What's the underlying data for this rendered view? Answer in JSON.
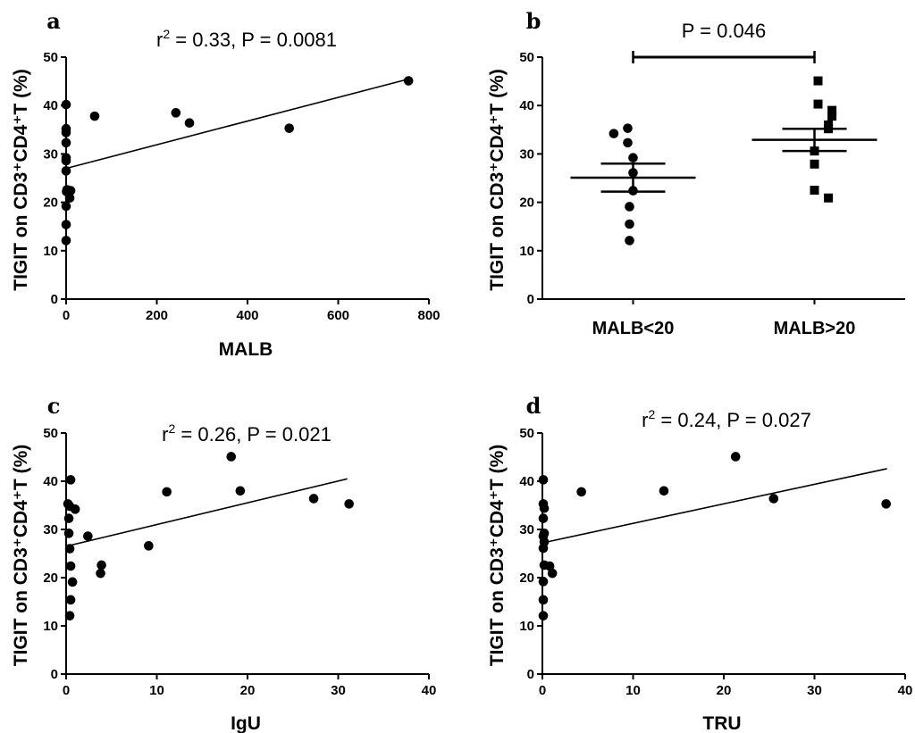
{
  "chart_data": [
    {
      "panel": "a",
      "type": "scatter",
      "stat_prefix": "r",
      "stat_sup": "2",
      "stat_suffix": " = 0.33, P = 0.0081",
      "xlabel": "MALB",
      "ylabel": "TIGIT on CD3⁺CD4⁺T  (%)",
      "xlim": [
        0,
        800
      ],
      "ylim": [
        0,
        50
      ],
      "xticks": [
        0,
        200,
        400,
        600,
        800
      ],
      "yticks": [
        0,
        10,
        20,
        30,
        40,
        50
      ],
      "points": [
        [
          0,
          40.2
        ],
        [
          0,
          35.2
        ],
        [
          0,
          34.4
        ],
        [
          0,
          32.3
        ],
        [
          0,
          29.2
        ],
        [
          0,
          28.6
        ],
        [
          0,
          26.5
        ],
        [
          2,
          22.6
        ],
        [
          1,
          22.2
        ],
        [
          0,
          19.2
        ],
        [
          0,
          15.4
        ],
        [
          0,
          12.1
        ],
        [
          8,
          20.9
        ],
        [
          10,
          22.4
        ],
        [
          63,
          37.8
        ],
        [
          242,
          38.5
        ],
        [
          272,
          36.4
        ],
        [
          492,
          35.3
        ],
        [
          755,
          45.1
        ]
      ],
      "fit_line": [
        [
          0,
          27.0
        ],
        [
          760,
          45.6
        ]
      ]
    },
    {
      "panel": "b",
      "type": "scatter",
      "stat_text": "P = 0.046",
      "ylabel": "TIGIT on CD3⁺CD4⁺T  (%)",
      "categories": [
        "MALB<20",
        "MALB>20"
      ],
      "ylim": [
        0,
        50
      ],
      "yticks": [
        0,
        10,
        20,
        30,
        40,
        50
      ],
      "series": [
        {
          "category": "MALB<20",
          "marker": "circle",
          "values": [
            35.3,
            34.2,
            32.3,
            29.2,
            26.1,
            22.4,
            19.1,
            15.5,
            12.1
          ],
          "mean": 25.1,
          "sem_low": 22.2,
          "sem_high": 28.0
        },
        {
          "category": "MALB>20",
          "marker": "square",
          "values": [
            45.1,
            40.3,
            39.0,
            37.8,
            36.0,
            35.2,
            30.6,
            27.9,
            22.5,
            20.9
          ],
          "mean": 32.9,
          "sem_low": 30.6,
          "sem_high": 35.2
        }
      ]
    },
    {
      "panel": "c",
      "type": "scatter",
      "stat_prefix": "r",
      "stat_sup": "2",
      "stat_suffix": " = 0.26, P = 0.021",
      "xlabel": "IgU",
      "ylabel": "TIGIT on CD3⁺CD4⁺T  (%)",
      "xlim": [
        0,
        40
      ],
      "ylim": [
        0,
        50
      ],
      "xticks": [
        0,
        10,
        20,
        30,
        40
      ],
      "yticks": [
        0,
        10,
        20,
        30,
        40,
        50
      ],
      "points": [
        [
          0.2,
          35.3
        ],
        [
          0.4,
          34.8
        ],
        [
          0.3,
          32.3
        ],
        [
          0.3,
          29.2
        ],
        [
          0.4,
          26.0
        ],
        [
          0.5,
          40.3
        ],
        [
          0.5,
          22.4
        ],
        [
          0.5,
          15.4
        ],
        [
          0.4,
          12.1
        ],
        [
          0.7,
          19.1
        ],
        [
          1.0,
          34.2
        ],
        [
          2.4,
          28.6
        ],
        [
          3.8,
          20.9
        ],
        [
          3.9,
          22.6
        ],
        [
          9.1,
          26.6
        ],
        [
          11.1,
          37.8
        ],
        [
          18.2,
          45.1
        ],
        [
          19.2,
          38.0
        ],
        [
          27.3,
          36.4
        ],
        [
          31.2,
          35.3
        ]
      ],
      "fit_line": [
        [
          0,
          26.5
        ],
        [
          31,
          40.5
        ]
      ]
    },
    {
      "panel": "d",
      "type": "scatter",
      "stat_prefix": "r",
      "stat_sup": "2",
      "stat_suffix": " = 0.24, P = 0.027",
      "xlabel": "TRU",
      "ylabel": "TIGIT on CD3⁺CD4⁺T  (%)",
      "xlim": [
        0,
        40
      ],
      "ylim": [
        0,
        50
      ],
      "xticks": [
        0,
        10,
        20,
        30,
        40
      ],
      "yticks": [
        0,
        10,
        20,
        30,
        40,
        50
      ],
      "points": [
        [
          0.1,
          40.3
        ],
        [
          0.1,
          35.3
        ],
        [
          0.2,
          34.4
        ],
        [
          0.1,
          32.3
        ],
        [
          0.2,
          29.2
        ],
        [
          0.1,
          28.6
        ],
        [
          0.2,
          27.4
        ],
        [
          0.1,
          26.1
        ],
        [
          0.2,
          22.6
        ],
        [
          0.1,
          19.2
        ],
        [
          0.1,
          15.4
        ],
        [
          0.1,
          12.1
        ],
        [
          0.8,
          22.4
        ],
        [
          1.1,
          20.9
        ],
        [
          4.3,
          37.8
        ],
        [
          13.4,
          38.0
        ],
        [
          21.3,
          45.1
        ],
        [
          25.5,
          36.4
        ],
        [
          37.9,
          35.3
        ]
      ],
      "fit_line": [
        [
          0,
          27.2
        ],
        [
          38,
          42.6
        ]
      ]
    }
  ]
}
